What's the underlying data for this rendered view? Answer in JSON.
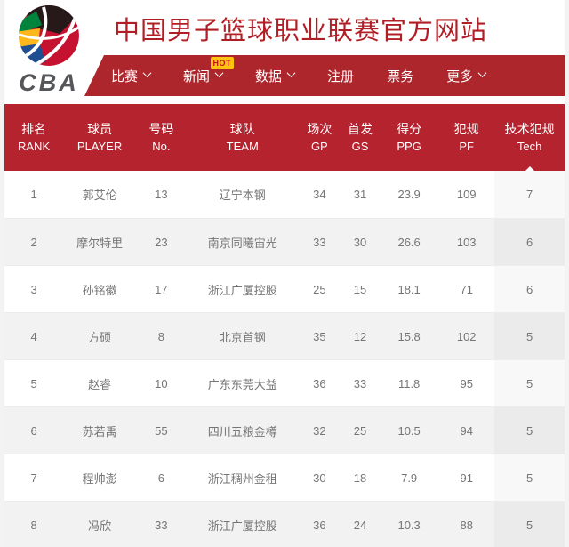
{
  "colors": {
    "nav_red": "#ad262c",
    "header_red": "#b4232e",
    "title_red": "#b01f26",
    "badge_yellow": "#fec40f",
    "row_alt_gray": "#f2f2f2",
    "cell_text": "#757575"
  },
  "header": {
    "logo_text": "CBA",
    "title": "中国男子篮球职业联赛官方网站"
  },
  "nav": {
    "items": [
      {
        "label": "比赛",
        "caret": true
      },
      {
        "label": "新闻",
        "caret": true,
        "badge": "HOT"
      },
      {
        "label": "数据",
        "caret": true
      },
      {
        "label": "注册",
        "caret": false
      },
      {
        "label": "票务",
        "caret": false
      },
      {
        "label": "更多",
        "caret": true
      }
    ]
  },
  "table": {
    "columns": [
      {
        "zh": "排名",
        "en": "RANK"
      },
      {
        "zh": "球员",
        "en": "PLAYER"
      },
      {
        "zh": "号码",
        "en": "No."
      },
      {
        "zh": "球队",
        "en": "TEAM"
      },
      {
        "zh": "场次",
        "en": "GP"
      },
      {
        "zh": "首发",
        "en": "GS"
      },
      {
        "zh": "得分",
        "en": "PPG"
      },
      {
        "zh": "犯规",
        "en": "PF"
      },
      {
        "zh": "技术犯规",
        "en": "Tech"
      }
    ],
    "sorted_column_index": 8,
    "rows": [
      [
        "1",
        "郭艾伦",
        "13",
        "辽宁本钢",
        "34",
        "31",
        "23.9",
        "109",
        "7"
      ],
      [
        "2",
        "摩尔特里",
        "23",
        "南京同曦宙光",
        "33",
        "30",
        "26.6",
        "103",
        "6"
      ],
      [
        "3",
        "孙铭徽",
        "17",
        "浙江广厦控股",
        "25",
        "15",
        "18.1",
        "71",
        "6"
      ],
      [
        "4",
        "方硕",
        "8",
        "北京首钢",
        "35",
        "12",
        "15.8",
        "102",
        "5"
      ],
      [
        "5",
        "赵睿",
        "10",
        "广东东莞大益",
        "36",
        "33",
        "11.8",
        "95",
        "5"
      ],
      [
        "6",
        "苏若禹",
        "55",
        "四川五粮金樽",
        "32",
        "25",
        "10.5",
        "94",
        "5"
      ],
      [
        "7",
        "程帅澎",
        "6",
        "浙江稠州金租",
        "30",
        "18",
        "7.9",
        "91",
        "5"
      ],
      [
        "8",
        "冯欣",
        "33",
        "浙江广厦控股",
        "36",
        "24",
        "10.3",
        "88",
        "5"
      ]
    ]
  }
}
